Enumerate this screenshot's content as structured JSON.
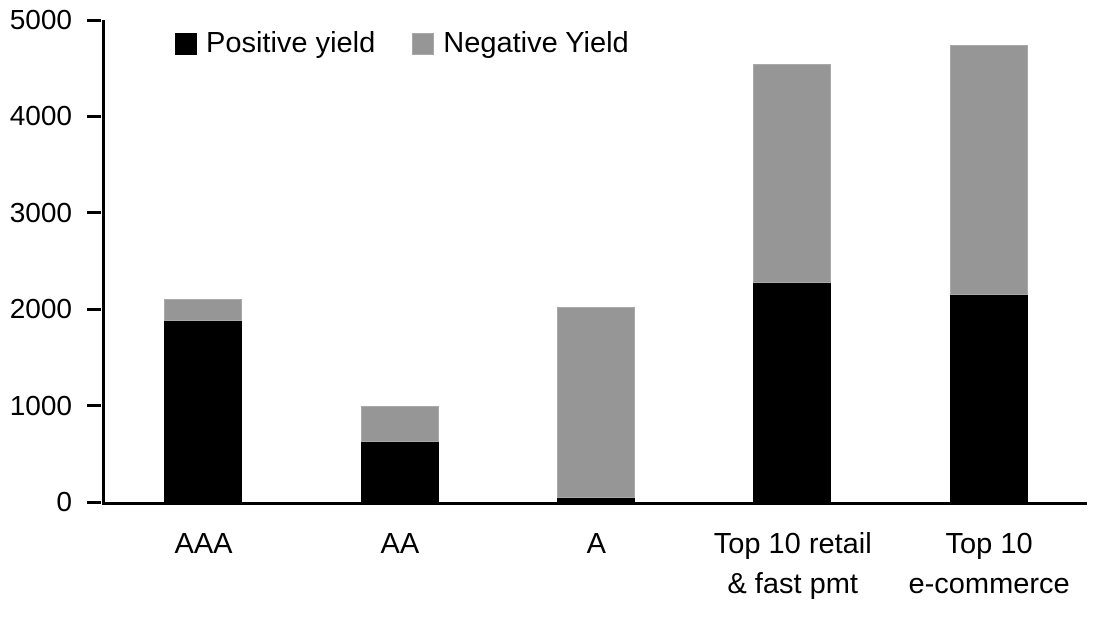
{
  "legend": {
    "items": [
      {
        "label": "Positive yield",
        "swatch": "black-square-swatch",
        "color": "#000000"
      },
      {
        "label": "Negative Yield",
        "swatch": "gray-square-swatch",
        "color": "#969696"
      }
    ]
  },
  "chart_data": {
    "type": "bar",
    "stacked": true,
    "title": "",
    "xlabel": "",
    "ylabel": "",
    "categories": [
      "AAA",
      "AA",
      "A",
      "Top 10 retail\n& fast pmt",
      "Top 10\ne-commerce"
    ],
    "series": [
      {
        "name": "Positive yield",
        "color": "#000000",
        "values": [
          1880,
          620,
          45,
          2270,
          2145
        ]
      },
      {
        "name": "Negative Yield",
        "color": "#969696",
        "values": [
          230,
          380,
          1980,
          2270,
          2595
        ]
      }
    ],
    "totals": [
      2110,
      1000,
      2025,
      4540,
      4740
    ],
    "ylim": [
      0,
      5000
    ],
    "yticks": [
      0,
      1000,
      2000,
      3000,
      4000,
      5000
    ],
    "grid": false,
    "legend_position": "top"
  }
}
